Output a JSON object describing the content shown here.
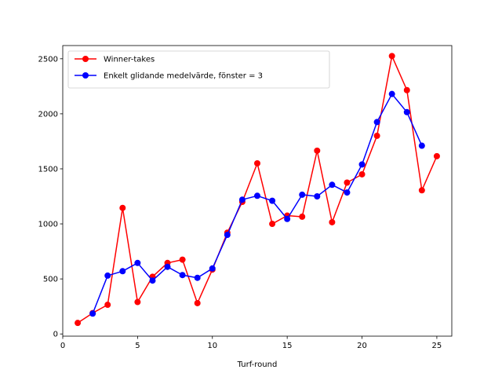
{
  "chart_data": {
    "type": "line",
    "xlabel": "Turf-round",
    "ylabel": "",
    "xlim": [
      0,
      26
    ],
    "ylim": [
      -20,
      2620
    ],
    "xticks": [
      0,
      5,
      10,
      15,
      20,
      25
    ],
    "yticks": [
      0,
      500,
      1000,
      1500,
      2000,
      2500
    ],
    "grid": false,
    "legend_position": "top-left",
    "series": [
      {
        "name": "Winner-takes",
        "color": "#ff0000",
        "x": [
          1,
          2,
          3,
          4,
          5,
          6,
          7,
          8,
          9,
          10,
          11,
          12,
          13,
          14,
          15,
          16,
          17,
          18,
          19,
          20,
          21,
          22,
          23,
          24,
          25
        ],
        "y": [
          100,
          190,
          265,
          1145,
          290,
          520,
          645,
          675,
          280,
          585,
          920,
          1200,
          1550,
          1000,
          1075,
          1065,
          1665,
          1015,
          1375,
          1450,
          1800,
          2525,
          2215,
          1305,
          1615
        ]
      },
      {
        "name": "Enkelt glidande medelvärde, fönster = 3",
        "color": "#0000ff",
        "x": [
          2,
          3,
          4,
          5,
          6,
          7,
          8,
          9,
          10,
          11,
          12,
          13,
          14,
          15,
          16,
          17,
          18,
          19,
          20,
          21,
          22,
          23,
          24
        ],
        "y": [
          185,
          530,
          570,
          645,
          485,
          610,
          535,
          510,
          595,
          900,
          1220,
          1255,
          1210,
          1045,
          1265,
          1250,
          1355,
          1285,
          1540,
          1925,
          2180,
          2015,
          1710
        ]
      }
    ]
  }
}
